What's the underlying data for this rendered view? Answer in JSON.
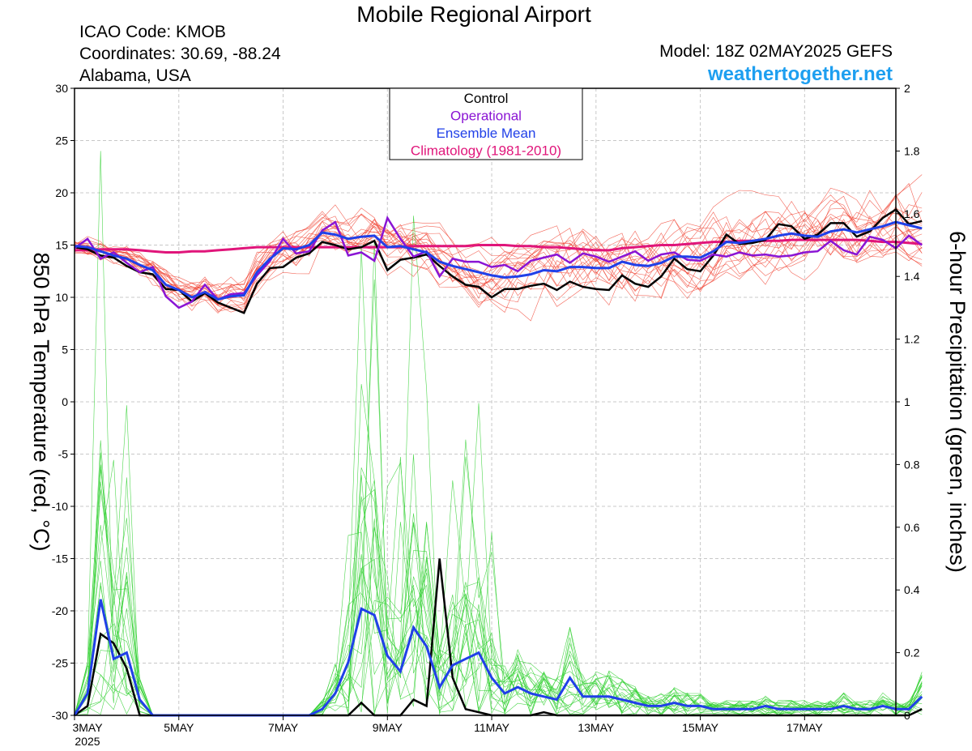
{
  "header": {
    "title": "Mobile Regional Airport",
    "icao": "ICAO Code: KMOB",
    "coordinates": "Coordinates: 30.69, -88.24",
    "region": "Alabama, USA",
    "model": "Model: 18Z 02MAY2025 GEFS",
    "website": "weathertogether.net"
  },
  "chart_data": {
    "type": "line",
    "title": "Mobile Regional Airport",
    "ylabel": "850 hPa Temperature (red, °C)",
    "ylabel2": "6-hour Precipitation (green, inches)",
    "ylim": [
      -30,
      30
    ],
    "ylim2": [
      0,
      2
    ],
    "xlim": [
      0,
      63
    ],
    "x_unit": "6-hour steps from 00Z 03MAY2025",
    "yticks": [
      "30",
      "25",
      "20",
      "15",
      "10",
      "5",
      "0",
      "-5",
      "-10",
      "-15",
      "-20",
      "-25",
      "-30"
    ],
    "yticks2": [
      "2",
      "1.8",
      "1.6",
      "1.4",
      "1.2",
      "1",
      "0.8",
      "0.6",
      "0.4",
      "0.2",
      "0"
    ],
    "xticks": [
      {
        "label": "3MAY",
        "x": 0,
        "sub": "2025"
      },
      {
        "label": "5MAY",
        "x": 8
      },
      {
        "label": "7MAY",
        "x": 16
      },
      {
        "label": "9MAY",
        "x": 24
      },
      {
        "label": "11MAY",
        "x": 32
      },
      {
        "label": "13MAY",
        "x": 40
      },
      {
        "label": "15MAY",
        "x": 48
      },
      {
        "label": "17MAY",
        "x": 56
      }
    ],
    "legend": {
      "position": "top-center",
      "entries": [
        {
          "label": "Control",
          "color": "#000000"
        },
        {
          "label": "Operational",
          "color": "#8a14d4"
        },
        {
          "label": "Ensemble Mean",
          "color": "#2040e8"
        },
        {
          "label": "Climatology (1981-2010)",
          "color": "#e0157a"
        }
      ]
    },
    "colors": {
      "members_temp": "#f04030",
      "members_precip": "#30d030",
      "control": "#000000",
      "operational": "#8a14d4",
      "mean": "#2040e8",
      "climatology": "#e0157a"
    },
    "temperature": {
      "control": [
        14.8,
        14.6,
        14.0,
        13.8,
        13.0,
        12.4,
        12.2,
        10.8,
        10.7,
        9.6,
        10.4,
        9.5,
        9.0,
        8.5,
        11.3,
        12.8,
        12.9,
        13.8,
        14.2,
        15.3,
        15.0,
        14.6,
        14.8,
        15.4,
        12.6,
        13.6,
        13.8,
        14.1,
        13.0,
        12.0,
        11.2,
        11.0,
        10.0,
        10.8,
        10.8,
        11.1,
        11.3,
        10.7,
        11.5,
        11.0,
        10.8,
        10.7,
        12.1,
        11.3,
        11.0,
        12.0,
        13.7,
        12.7,
        12.5,
        14.0,
        16.0,
        15.1,
        15.2,
        15.5,
        17.0,
        16.8,
        15.6,
        16.0,
        17.1,
        17.1,
        15.8,
        16.3,
        17.6,
        18.4,
        17.0,
        17.3
      ],
      "operational": [
        14.7,
        15.6,
        13.7,
        14.3,
        13.3,
        12.4,
        12.9,
        10.1,
        9.0,
        9.6,
        11.2,
        9.8,
        10.3,
        10.4,
        12.1,
        13.5,
        15.6,
        14.2,
        14.4,
        16.4,
        17.2,
        14.0,
        14.3,
        13.5,
        17.6,
        15.6,
        13.9,
        14.4,
        12.0,
        13.7,
        13.4,
        13.4,
        12.9,
        13.1,
        12.5,
        13.5,
        13.8,
        14.1,
        13.3,
        14.2,
        13.9,
        13.4,
        13.9,
        14.4,
        13.5,
        14.1,
        14.3,
        13.6,
        13.5,
        14.1,
        13.9,
        14.3,
        14.0,
        14.1,
        13.9,
        14.0,
        14.3,
        14.4,
        15.4,
        14.5,
        14.1,
        15.8,
        15.5,
        14.7,
        15.9,
        15.0
      ],
      "mean": [
        14.9,
        14.8,
        14.4,
        14.0,
        13.7,
        13.1,
        12.6,
        11.2,
        10.7,
        10.0,
        10.5,
        9.8,
        10.1,
        10.2,
        12.4,
        13.7,
        14.7,
        14.6,
        15.0,
        16.2,
        16.0,
        15.6,
        15.8,
        15.9,
        14.8,
        14.9,
        14.6,
        14.3,
        13.4,
        13.0,
        12.7,
        12.4,
        12.1,
        11.9,
        12.0,
        12.2,
        12.6,
        12.5,
        12.9,
        12.9,
        12.8,
        12.8,
        13.4,
        13.1,
        13.0,
        13.3,
        13.9,
        13.9,
        13.8,
        14.4,
        15.3,
        15.2,
        15.4,
        15.6,
        15.9,
        16.1,
        15.9,
        15.8,
        16.3,
        16.5,
        16.2,
        16.5,
        16.8,
        17.2,
        16.9,
        16.6
      ],
      "climatology": [
        14.5,
        14.5,
        14.6,
        14.6,
        14.6,
        14.5,
        14.4,
        14.3,
        14.3,
        14.4,
        14.4,
        14.5,
        14.6,
        14.7,
        14.8,
        14.8,
        14.8,
        14.8,
        14.8,
        14.8,
        14.8,
        14.8,
        14.8,
        14.8,
        14.8,
        14.8,
        14.9,
        14.9,
        14.9,
        14.9,
        14.9,
        15.0,
        15.0,
        15.0,
        14.9,
        14.9,
        14.8,
        14.8,
        14.7,
        14.6,
        14.5,
        14.5,
        14.7,
        14.8,
        14.9,
        15.0,
        15.0,
        15.1,
        15.2,
        15.3,
        15.3,
        15.4,
        15.4,
        15.4,
        15.4,
        15.5,
        15.5,
        15.5,
        15.5,
        15.5,
        15.5,
        15.4,
        15.3,
        15.3,
        15.2,
        15.1
      ]
    },
    "precipitation": {
      "control": [
        0.0,
        0.03,
        0.26,
        0.23,
        0.15,
        0.0,
        0.0,
        0.0,
        0.0,
        0.0,
        0.0,
        0.0,
        0.0,
        0.0,
        0.0,
        0.0,
        0.0,
        0.0,
        0.0,
        0.0,
        0.0,
        0.0,
        0.04,
        0.0,
        0.0,
        0.0,
        0.05,
        0.03,
        0.5,
        0.12,
        0.02,
        0.01,
        0.0,
        0.0,
        0.0,
        0.0,
        0.01,
        0.0,
        0.0,
        0.0,
        0.0,
        0.0,
        0.0,
        0.0,
        0.0,
        0.0,
        0.0,
        0.0,
        0.0,
        0.0,
        0.0,
        0.0,
        0.0,
        0.0,
        0.0,
        0.0,
        0.0,
        0.0,
        0.0,
        0.0,
        0.0,
        0.0,
        0.0,
        0.0,
        0.0,
        0.02
      ],
      "mean": [
        0.0,
        0.07,
        0.37,
        0.18,
        0.2,
        0.05,
        0.0,
        0.0,
        0.0,
        0.0,
        0.0,
        0.0,
        0.0,
        0.0,
        0.0,
        0.0,
        0.0,
        0.0,
        0.0,
        0.02,
        0.07,
        0.17,
        0.34,
        0.32,
        0.19,
        0.14,
        0.28,
        0.22,
        0.09,
        0.16,
        0.18,
        0.2,
        0.12,
        0.07,
        0.09,
        0.07,
        0.06,
        0.05,
        0.12,
        0.06,
        0.06,
        0.06,
        0.05,
        0.04,
        0.03,
        0.03,
        0.04,
        0.03,
        0.03,
        0.02,
        0.02,
        0.02,
        0.02,
        0.03,
        0.02,
        0.02,
        0.02,
        0.02,
        0.02,
        0.03,
        0.02,
        0.02,
        0.03,
        0.02,
        0.02,
        0.06
      ]
    }
  }
}
